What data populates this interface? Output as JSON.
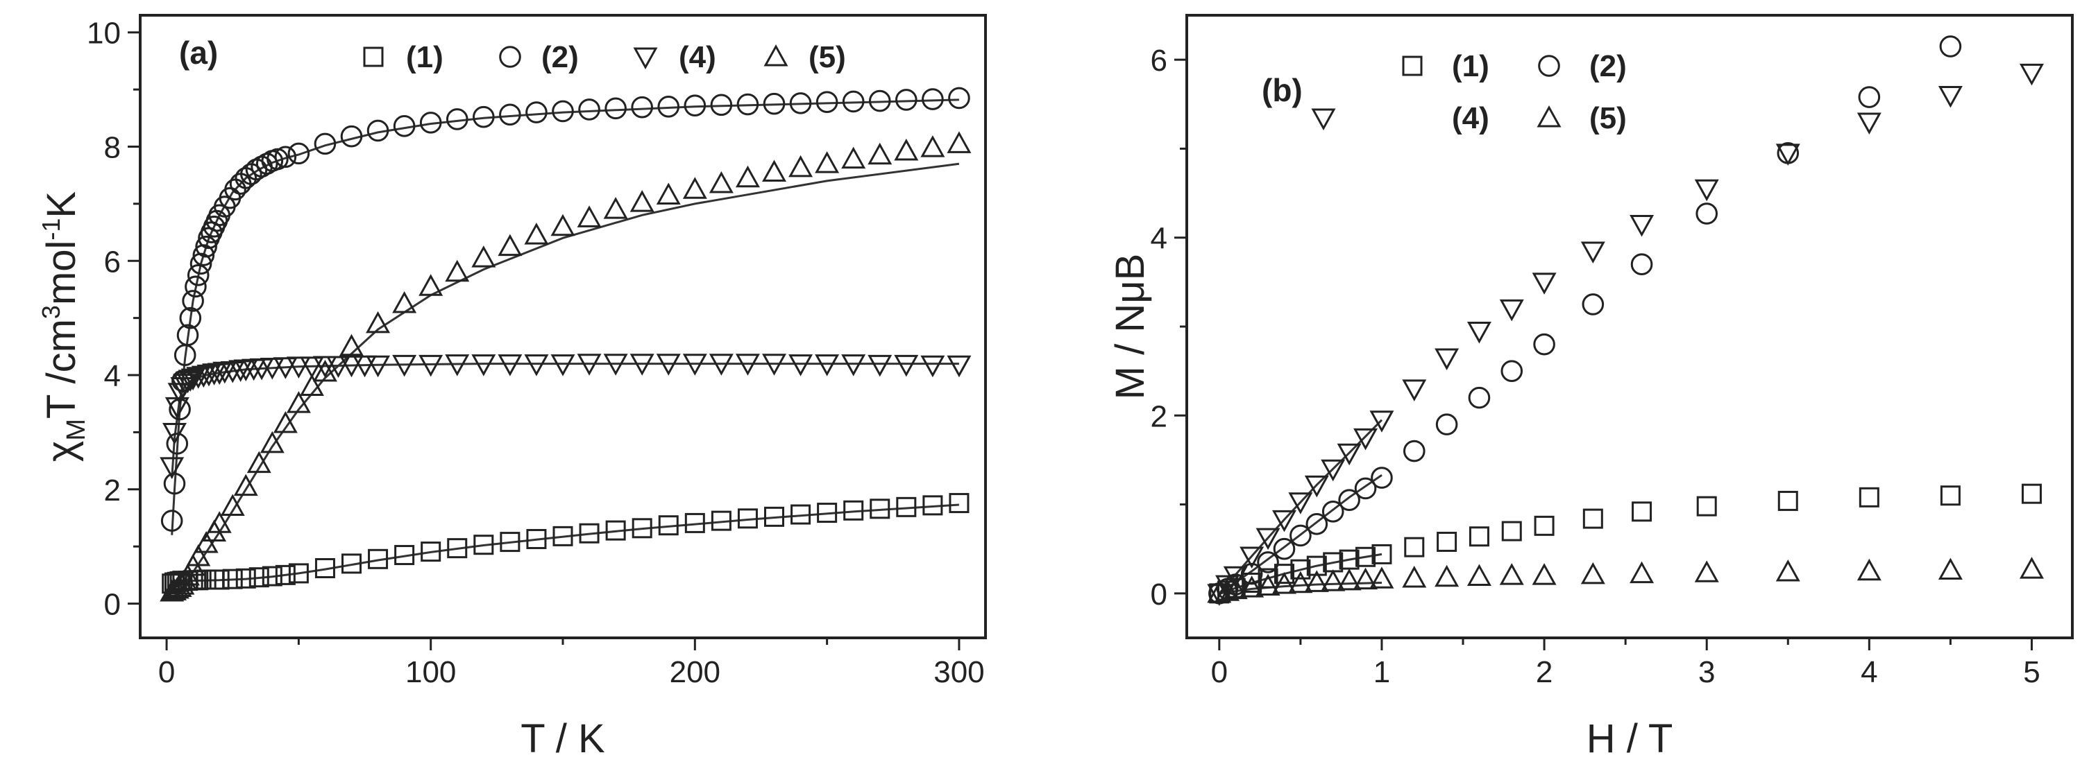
{
  "chart_data": [
    {
      "type": "scatter",
      "panel_label": "(a)",
      "xlabel": "T / K",
      "ylabel": {
        "main": "χ",
        "sub": "M",
        "mid": "T /cm",
        "sup1": "3",
        "mid2": "mol",
        "sup2": "-1",
        "end": "K"
      },
      "xlim": [
        -10,
        310
      ],
      "ylim": [
        -0.6,
        10.3
      ],
      "xticks": [
        0,
        100,
        200,
        300
      ],
      "yticks": [
        0,
        2,
        4,
        6,
        8,
        10
      ],
      "legend": [
        {
          "key": "1",
          "label": "(1)",
          "marker": "square"
        },
        {
          "key": "2",
          "label": "(2)",
          "marker": "circle"
        },
        {
          "key": "4",
          "label": "(4)",
          "marker": "triangle-down"
        },
        {
          "key": "5",
          "label": "(5)",
          "marker": "triangle-up"
        }
      ],
      "series": [
        {
          "name": "(1)",
          "marker": "square",
          "x": [
            2,
            3,
            4,
            5,
            6,
            8,
            10,
            12,
            15,
            18,
            20,
            25,
            30,
            35,
            40,
            45,
            50,
            60,
            70,
            80,
            90,
            100,
            110,
            120,
            130,
            140,
            150,
            160,
            170,
            180,
            190,
            200,
            210,
            220,
            230,
            240,
            250,
            260,
            270,
            280,
            290,
            300
          ],
          "y": [
            0.35,
            0.37,
            0.38,
            0.39,
            0.4,
            0.4,
            0.41,
            0.41,
            0.42,
            0.42,
            0.42,
            0.43,
            0.44,
            0.46,
            0.48,
            0.5,
            0.53,
            0.62,
            0.7,
            0.78,
            0.85,
            0.91,
            0.97,
            1.03,
            1.08,
            1.13,
            1.18,
            1.23,
            1.28,
            1.32,
            1.37,
            1.41,
            1.45,
            1.49,
            1.52,
            1.56,
            1.59,
            1.63,
            1.66,
            1.69,
            1.72,
            1.76
          ]
        },
        {
          "name": "(2)",
          "marker": "circle",
          "x": [
            2,
            3,
            4,
            5,
            6,
            7,
            8,
            9,
            10,
            11,
            12,
            13,
            14,
            15,
            16,
            17,
            18,
            19,
            20,
            22,
            24,
            26,
            28,
            30,
            32,
            34,
            36,
            38,
            40,
            42,
            45,
            50,
            60,
            70,
            80,
            90,
            100,
            110,
            120,
            130,
            140,
            150,
            160,
            170,
            180,
            190,
            200,
            210,
            220,
            230,
            240,
            250,
            260,
            270,
            280,
            290,
            300
          ],
          "y": [
            1.45,
            2.1,
            2.8,
            3.4,
            3.9,
            4.35,
            4.7,
            5.0,
            5.3,
            5.55,
            5.75,
            5.95,
            6.1,
            6.25,
            6.4,
            6.5,
            6.6,
            6.7,
            6.8,
            6.95,
            7.1,
            7.25,
            7.35,
            7.45,
            7.52,
            7.6,
            7.65,
            7.7,
            7.75,
            7.78,
            7.82,
            7.88,
            8.05,
            8.18,
            8.28,
            8.36,
            8.42,
            8.48,
            8.52,
            8.56,
            8.6,
            8.62,
            8.65,
            8.67,
            8.69,
            8.7,
            8.72,
            8.73,
            8.74,
            8.75,
            8.76,
            8.78,
            8.79,
            8.8,
            8.82,
            8.83,
            8.85
          ]
        },
        {
          "name": "(4)",
          "marker": "triangle-down",
          "x": [
            2,
            3,
            4,
            5,
            6,
            7,
            8,
            9,
            10,
            12,
            14,
            16,
            18,
            20,
            22,
            25,
            28,
            30,
            33,
            36,
            40,
            45,
            50,
            55,
            60,
            65,
            70,
            75,
            80,
            90,
            100,
            110,
            120,
            130,
            140,
            150,
            160,
            170,
            180,
            190,
            200,
            210,
            220,
            230,
            240,
            250,
            260,
            270,
            280,
            290,
            300
          ],
          "y": [
            2.4,
            3.0,
            3.45,
            3.7,
            3.8,
            3.86,
            3.9,
            3.93,
            3.95,
            3.98,
            4.0,
            4.02,
            4.04,
            4.05,
            4.07,
            4.08,
            4.1,
            4.11,
            4.12,
            4.13,
            4.14,
            4.15,
            4.16,
            4.16,
            4.17,
            4.17,
            4.18,
            4.18,
            4.18,
            4.19,
            4.19,
            4.2,
            4.2,
            4.2,
            4.2,
            4.2,
            4.21,
            4.21,
            4.21,
            4.21,
            4.21,
            4.21,
            4.21,
            4.21,
            4.2,
            4.2,
            4.2,
            4.19,
            4.19,
            4.18,
            4.18
          ]
        },
        {
          "name": "(5)",
          "marker": "triangle-up",
          "x": [
            2,
            3,
            4,
            5,
            6,
            7,
            8,
            10,
            12,
            15,
            18,
            20,
            25,
            30,
            35,
            40,
            45,
            50,
            55,
            60,
            70,
            80,
            90,
            100,
            110,
            120,
            130,
            140,
            150,
            160,
            170,
            180,
            190,
            200,
            210,
            220,
            230,
            240,
            250,
            260,
            270,
            280,
            290,
            300
          ],
          "y": [
            0.2,
            0.22,
            0.25,
            0.28,
            0.32,
            0.4,
            0.48,
            0.65,
            0.82,
            1.05,
            1.25,
            1.4,
            1.7,
            2.05,
            2.45,
            2.8,
            3.15,
            3.5,
            3.8,
            4.05,
            4.5,
            4.9,
            5.25,
            5.55,
            5.8,
            6.05,
            6.25,
            6.45,
            6.6,
            6.75,
            6.9,
            7.02,
            7.15,
            7.25,
            7.35,
            7.45,
            7.55,
            7.63,
            7.7,
            7.78,
            7.85,
            7.92,
            7.98,
            8.05
          ]
        }
      ],
      "fits": [
        {
          "name": "(1) fit",
          "x": [
            2,
            5,
            10,
            20,
            30,
            40,
            50,
            60,
            80,
            100,
            120,
            140,
            160,
            180,
            200,
            220,
            240,
            260,
            280,
            300
          ],
          "y": [
            0.38,
            0.39,
            0.4,
            0.41,
            0.43,
            0.47,
            0.53,
            0.6,
            0.76,
            0.9,
            1.02,
            1.12,
            1.22,
            1.31,
            1.39,
            1.47,
            1.54,
            1.61,
            1.67,
            1.73
          ]
        },
        {
          "name": "(2) fit",
          "x": [
            2,
            3,
            5,
            7,
            10,
            13,
            16,
            20,
            25,
            30,
            35,
            40,
            45,
            50,
            60,
            80,
            100,
            120,
            150,
            200,
            250,
            300
          ],
          "y": [
            1.2,
            2.0,
            3.4,
            4.3,
            5.3,
            5.95,
            6.4,
            6.8,
            7.2,
            7.45,
            7.6,
            7.72,
            7.8,
            7.86,
            8.02,
            8.25,
            8.4,
            8.5,
            8.6,
            8.7,
            8.76,
            8.82
          ]
        },
        {
          "name": "(4) fit",
          "x": [
            2,
            3,
            5,
            7,
            10,
            15,
            20,
            30,
            50,
            80,
            120,
            200,
            300
          ],
          "y": [
            2.2,
            2.9,
            3.6,
            3.82,
            3.93,
            4.0,
            4.04,
            4.1,
            4.15,
            4.18,
            4.2,
            4.2,
            4.2
          ]
        },
        {
          "name": "(5) fit",
          "x": [
            2,
            5,
            10,
            20,
            30,
            40,
            50,
            60,
            80,
            100,
            120,
            150,
            180,
            200,
            250,
            300
          ],
          "y": [
            0.1,
            0.2,
            0.55,
            1.25,
            2.0,
            2.75,
            3.4,
            3.95,
            4.8,
            5.4,
            5.85,
            6.4,
            6.8,
            7.0,
            7.4,
            7.7
          ]
        }
      ]
    },
    {
      "type": "scatter",
      "panel_label": "(b)",
      "xlabel": "H / T",
      "ylabel": {
        "main": "M / NμB"
      },
      "xlim": [
        -0.2,
        5.25
      ],
      "ylim": [
        -0.5,
        6.5
      ],
      "xticks": [
        0,
        1,
        2,
        3,
        4,
        5
      ],
      "yticks": [
        0,
        2,
        4,
        6
      ],
      "legend": [
        {
          "key": "1",
          "label": "(1)",
          "marker": "square"
        },
        {
          "key": "2",
          "label": "(2)",
          "marker": "circle"
        },
        {
          "key": "4",
          "label": "(4)",
          "marker": "triangle-down"
        },
        {
          "key": "5",
          "label": "(5)",
          "marker": "triangle-up"
        }
      ],
      "series": [
        {
          "name": "(1)",
          "marker": "square",
          "x": [
            0,
            0.05,
            0.1,
            0.2,
            0.3,
            0.4,
            0.5,
            0.6,
            0.7,
            0.8,
            0.9,
            1.0,
            1.2,
            1.4,
            1.6,
            1.8,
            2.0,
            2.3,
            2.6,
            3.0,
            3.5,
            4.0,
            4.5,
            5.0
          ],
          "y": [
            0.0,
            0.03,
            0.06,
            0.12,
            0.17,
            0.22,
            0.27,
            0.31,
            0.35,
            0.38,
            0.41,
            0.44,
            0.52,
            0.58,
            0.64,
            0.7,
            0.76,
            0.84,
            0.92,
            0.98,
            1.04,
            1.08,
            1.1,
            1.12
          ]
        },
        {
          "name": "(2)",
          "marker": "circle",
          "x": [
            0,
            0.05,
            0.1,
            0.2,
            0.3,
            0.4,
            0.5,
            0.6,
            0.7,
            0.8,
            0.9,
            1.0,
            1.2,
            1.4,
            1.6,
            1.8,
            2.0,
            2.3,
            2.6,
            3.0,
            3.5,
            4.0,
            4.5
          ],
          "y": [
            0.0,
            0.05,
            0.1,
            0.22,
            0.35,
            0.5,
            0.65,
            0.78,
            0.92,
            1.05,
            1.18,
            1.3,
            1.6,
            1.9,
            2.2,
            2.5,
            2.8,
            3.25,
            3.7,
            4.27,
            4.95,
            5.58,
            6.15
          ]
        },
        {
          "name": "(4)",
          "marker": "triangle-down",
          "x": [
            0,
            0.05,
            0.1,
            0.2,
            0.3,
            0.4,
            0.5,
            0.6,
            0.7,
            0.8,
            0.9,
            1.0,
            1.2,
            1.4,
            1.6,
            1.8,
            2.0,
            2.3,
            2.6,
            3.0,
            3.5,
            4.0,
            4.5,
            5.0
          ],
          "y": [
            0.0,
            0.1,
            0.2,
            0.42,
            0.63,
            0.83,
            1.03,
            1.22,
            1.4,
            1.58,
            1.75,
            1.95,
            2.3,
            2.65,
            2.95,
            3.2,
            3.5,
            3.85,
            4.15,
            4.55,
            4.95,
            5.3,
            5.6,
            5.85
          ]
        },
        {
          "name": "(5)",
          "marker": "triangle-up",
          "x": [
            0,
            0.05,
            0.1,
            0.2,
            0.3,
            0.4,
            0.5,
            0.6,
            0.7,
            0.8,
            0.9,
            1.0,
            1.2,
            1.4,
            1.6,
            1.8,
            2.0,
            2.3,
            2.6,
            3.0,
            3.5,
            4.0,
            4.5,
            5.0
          ],
          "y": [
            0.0,
            0.02,
            0.04,
            0.06,
            0.08,
            0.1,
            0.11,
            0.12,
            0.13,
            0.14,
            0.15,
            0.16,
            0.17,
            0.18,
            0.19,
            0.2,
            0.2,
            0.21,
            0.22,
            0.23,
            0.24,
            0.25,
            0.26,
            0.27
          ]
        }
      ],
      "fits": [
        {
          "name": "(1) fit",
          "x": [
            0,
            0.2,
            0.4,
            0.6,
            0.8,
            1.0
          ],
          "y": [
            0.0,
            0.12,
            0.22,
            0.31,
            0.38,
            0.44
          ]
        },
        {
          "name": "(2) fit",
          "x": [
            0,
            0.2,
            0.4,
            0.6,
            0.8,
            1.0
          ],
          "y": [
            0.0,
            0.25,
            0.52,
            0.8,
            1.08,
            1.33
          ]
        },
        {
          "name": "(4) fit",
          "x": [
            0,
            0.2,
            0.4,
            0.6,
            0.8,
            1.0
          ],
          "y": [
            0.0,
            0.42,
            0.83,
            1.22,
            1.58,
            1.95
          ]
        },
        {
          "name": "(5) fit",
          "x": [
            0,
            0.2,
            0.4,
            0.6,
            0.8,
            1.0
          ],
          "y": [
            0.0,
            0.05,
            0.08,
            0.1,
            0.11,
            0.12
          ]
        }
      ]
    }
  ]
}
